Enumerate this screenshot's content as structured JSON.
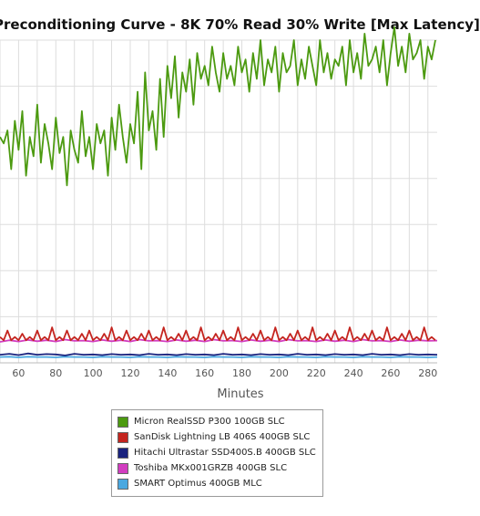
{
  "chart_data": {
    "type": "line",
    "title": "Preconditioning Curve - 8K 70% Read 30% Write [Max Latency]",
    "xlabel": "Minutes",
    "ylabel": "",
    "xlim": [
      50,
      285
    ],
    "ylim": [
      0,
      100
    ],
    "xticks": [
      60,
      80,
      100,
      120,
      140,
      160,
      180,
      200,
      220,
      240,
      260,
      280
    ],
    "grid": true,
    "legend": "bottom",
    "series": [
      {
        "name": "Micron RealSSD P300 100GB SLC",
        "color": "#4c9a10",
        "x": [
          50,
          52,
          54,
          56,
          58,
          60,
          62,
          64,
          66,
          68,
          70,
          72,
          74,
          76,
          78,
          80,
          82,
          84,
          86,
          88,
          90,
          92,
          94,
          96,
          98,
          100,
          102,
          104,
          106,
          108,
          110,
          112,
          114,
          116,
          118,
          120,
          122,
          124,
          126,
          128,
          130,
          132,
          134,
          136,
          138,
          140,
          142,
          144,
          146,
          148,
          150,
          152,
          154,
          156,
          158,
          160,
          162,
          164,
          166,
          168,
          170,
          172,
          174,
          176,
          178,
          180,
          182,
          184,
          186,
          188,
          190,
          192,
          194,
          196,
          198,
          200,
          202,
          204,
          206,
          208,
          210,
          212,
          214,
          216,
          218,
          220,
          222,
          224,
          226,
          228,
          230,
          232,
          234,
          236,
          238,
          240,
          242,
          244,
          246,
          248,
          250,
          252,
          254,
          256,
          258,
          260,
          262,
          264,
          266,
          268,
          270,
          272,
          274,
          276,
          278,
          280,
          282,
          284
        ],
        "values": [
          70,
          68,
          72,
          60,
          75,
          66,
          78,
          58,
          70,
          64,
          80,
          62,
          74,
          68,
          60,
          76,
          65,
          70,
          55,
          72,
          66,
          62,
          78,
          64,
          70,
          60,
          74,
          68,
          72,
          58,
          76,
          66,
          80,
          70,
          62,
          74,
          68,
          84,
          60,
          90,
          72,
          78,
          66,
          88,
          70,
          92,
          82,
          95,
          76,
          90,
          84,
          94,
          80,
          96,
          88,
          92,
          86,
          98,
          90,
          84,
          96,
          88,
          92,
          86,
          98,
          90,
          94,
          84,
          96,
          88,
          100,
          86,
          94,
          90,
          98,
          84,
          96,
          90,
          92,
          100,
          86,
          94,
          88,
          98,
          92,
          86,
          100,
          90,
          96,
          88,
          94,
          92,
          98,
          86,
          100,
          90,
          96,
          88,
          102,
          92,
          94,
          98,
          90,
          100,
          86,
          96,
          104,
          92,
          98,
          90,
          102,
          94,
          96,
          100,
          88,
          98,
          94,
          100
        ]
      },
      {
        "name": "SanDisk Lightning LB 406S 400GB SLC",
        "color": "#c4251f",
        "x": [
          50,
          52,
          54,
          56,
          58,
          60,
          62,
          64,
          66,
          68,
          70,
          72,
          74,
          76,
          78,
          80,
          82,
          84,
          86,
          88,
          90,
          92,
          94,
          96,
          98,
          100,
          102,
          104,
          106,
          108,
          110,
          112,
          114,
          116,
          118,
          120,
          122,
          124,
          126,
          128,
          130,
          132,
          134,
          136,
          138,
          140,
          142,
          144,
          146,
          148,
          150,
          152,
          154,
          156,
          158,
          160,
          162,
          164,
          166,
          168,
          170,
          172,
          174,
          176,
          178,
          180,
          182,
          184,
          186,
          188,
          190,
          192,
          194,
          196,
          198,
          200,
          202,
          204,
          206,
          208,
          210,
          212,
          214,
          216,
          218,
          220,
          222,
          224,
          226,
          228,
          230,
          232,
          234,
          236,
          238,
          240,
          242,
          244,
          246,
          248,
          250,
          252,
          254,
          256,
          258,
          260,
          262,
          264,
          266,
          268,
          270,
          272,
          274,
          276,
          278,
          280,
          282,
          284
        ],
        "values": [
          8,
          7,
          10,
          7,
          8,
          7,
          9,
          7,
          8,
          7,
          10,
          7,
          8,
          7,
          11,
          7,
          8,
          7,
          10,
          7,
          8,
          7,
          9,
          7,
          10,
          7,
          8,
          7,
          9,
          7,
          11,
          7,
          8,
          7,
          10,
          7,
          8,
          7,
          9,
          7,
          10,
          7,
          8,
          7,
          11,
          7,
          8,
          7,
          9,
          7,
          10,
          7,
          8,
          7,
          11,
          7,
          8,
          7,
          9,
          7,
          10,
          7,
          8,
          7,
          11,
          7,
          8,
          7,
          9,
          7,
          10,
          7,
          8,
          7,
          11,
          7,
          8,
          7,
          9,
          7,
          10,
          7,
          8,
          7,
          11,
          7,
          8,
          7,
          9,
          7,
          10,
          7,
          8,
          7,
          11,
          7,
          8,
          7,
          9,
          7,
          10,
          7,
          8,
          7,
          11,
          7,
          8,
          7,
          9,
          7,
          10,
          7,
          8,
          7,
          11,
          7,
          8,
          7
        ]
      },
      {
        "name": "Hitachi Ultrastar SSD400S.B 400GB SLC",
        "color": "#1a237e",
        "x": [
          50,
          55,
          60,
          65,
          70,
          75,
          80,
          85,
          90,
          95,
          100,
          105,
          110,
          115,
          120,
          125,
          130,
          135,
          140,
          145,
          150,
          155,
          160,
          165,
          170,
          175,
          180,
          185,
          190,
          195,
          200,
          205,
          210,
          215,
          220,
          225,
          230,
          235,
          240,
          245,
          250,
          255,
          260,
          265,
          270,
          275,
          280,
          285
        ],
        "values": [
          2.5,
          2.8,
          2.4,
          2.9,
          2.5,
          2.7,
          2.6,
          2.3,
          2.8,
          2.5,
          2.6,
          2.4,
          2.7,
          2.5,
          2.6,
          2.4,
          2.8,
          2.5,
          2.6,
          2.4,
          2.7,
          2.5,
          2.6,
          2.4,
          2.8,
          2.5,
          2.6,
          2.4,
          2.7,
          2.5,
          2.6,
          2.4,
          2.8,
          2.5,
          2.6,
          2.4,
          2.7,
          2.5,
          2.6,
          2.4,
          2.8,
          2.5,
          2.6,
          2.4,
          2.7,
          2.5,
          2.6,
          2.5
        ]
      },
      {
        "name": "Toshiba MKx001GRZB 400GB SLC",
        "color": "#d23dc0",
        "x": [
          50,
          55,
          60,
          65,
          70,
          75,
          80,
          85,
          90,
          95,
          100,
          105,
          110,
          115,
          120,
          125,
          130,
          135,
          140,
          145,
          150,
          155,
          160,
          165,
          170,
          175,
          180,
          185,
          190,
          195,
          200,
          205,
          210,
          215,
          220,
          225,
          230,
          235,
          240,
          245,
          250,
          255,
          260,
          265,
          270,
          275,
          280,
          285
        ],
        "values": [
          6.5,
          7,
          6.6,
          7.1,
          6.7,
          7,
          6.6,
          7.2,
          6.8,
          6.9,
          6.6,
          7.1,
          6.7,
          7,
          6.6,
          7.2,
          6.8,
          6.9,
          6.6,
          7.1,
          6.7,
          7,
          6.6,
          7.2,
          6.8,
          6.9,
          6.6,
          7.1,
          6.7,
          7,
          6.6,
          7.2,
          6.8,
          6.9,
          6.6,
          7.1,
          6.7,
          7,
          6.6,
          7.2,
          6.8,
          6.9,
          6.6,
          7.1,
          6.7,
          7,
          6.8,
          6.9
        ]
      },
      {
        "name": "SMART Optimus 400GB MLC",
        "color": "#4aa8e0",
        "x": [
          50,
          55,
          60,
          65,
          70,
          75,
          80,
          85,
          90,
          95,
          100,
          105,
          110,
          115,
          120,
          125,
          130,
          135,
          140,
          145,
          150,
          155,
          160,
          165,
          170,
          175,
          180,
          185,
          190,
          195,
          200,
          205,
          210,
          215,
          220,
          225,
          230,
          235,
          240,
          245,
          250,
          255,
          260,
          265,
          270,
          275,
          280,
          285
        ],
        "values": [
          1.8,
          1.9,
          1.7,
          1.9,
          1.8,
          1.8,
          1.7,
          1.9,
          1.8,
          1.8,
          1.7,
          1.9,
          1.8,
          1.8,
          1.7,
          1.9,
          1.8,
          1.8,
          1.7,
          1.9,
          1.8,
          1.8,
          1.7,
          1.9,
          1.8,
          1.8,
          1.7,
          1.9,
          1.8,
          1.8,
          1.7,
          1.9,
          1.8,
          1.8,
          1.7,
          1.9,
          1.8,
          1.8,
          1.7,
          1.9,
          1.8,
          1.8,
          1.7,
          1.9,
          1.8,
          1.8,
          1.7,
          1.8
        ]
      }
    ]
  }
}
